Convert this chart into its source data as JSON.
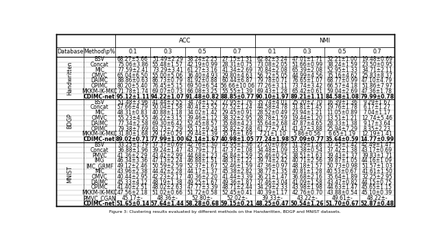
{
  "sections": [
    {
      "db": "Handwritten",
      "methods": [
        "BSV",
        "Concat",
        "MIC",
        "OMVC",
        "DAIMC",
        "OPIMC",
        "MKKM-IK-MKC",
        "CDIMC-net"
      ],
      "acc": [
        [
          "68.27±5.66",
          "51.49±2.29",
          "38.24±2.25",
          "27.15±1.31"
        ],
        [
          "75.06±3.86",
          "55.48±1.57",
          "42.19±0.99",
          "28.31±0.75"
        ],
        [
          "77.59±2.41",
          "73.29±3.41",
          "61.27±3.16",
          "41.34±2.69"
        ],
        [
          "65.04±6.50",
          "55.00±5.06",
          "36.40±4.93",
          "29.80±4.63"
        ],
        [
          "88.86±0.63",
          "86.73±0.79",
          "81.92±0.88",
          "60.44±6.87"
        ],
        [
          "80.20±5.40",
          "76.45±5.15",
          "69.50±6.54",
          "56.66±10.06"
        ],
        [
          "71.78±1.74",
          "69.07±0.73",
          "66.08±3.25",
          "55.55±1.39"
        ],
        [
          "95.12±1.11",
          "94.22±1.07",
          "91.48±0.82",
          "88.85±0.77"
        ]
      ],
      "nmi": [
        [
          "62.82±3.24",
          "47.01±1.71",
          "32.21±1.00",
          "19.48±0.69"
        ],
        [
          "73.08±2.05",
          "51.66±0.99",
          "38.24±1.59",
          "23.50±0.95"
        ],
        [
          "70.84±2.08",
          "65.39±2.08",
          "52.95±1.33",
          "34.71±2.11"
        ],
        [
          "56.72±5.05",
          "44.99±4.56",
          "35.16±4.62",
          "25.83±8.37"
        ],
        [
          "79.78±0.71",
          "76.65±1.07",
          "68.77±0.99",
          "47.10±4.79"
        ],
        [
          "77.26±3.11",
          "73.74±3.42",
          "66.57±4.18",
          "51.86±7.97"
        ],
        [
          "69.43±1.28",
          "65.42±0.61",
          "59.04±2.69",
          "47.36±1.78"
        ],
        [
          "90.10±1.97",
          "89.21±1.11",
          "84.58±1.08",
          "79.99±0.78"
        ]
      ]
    },
    {
      "db": "BDGP",
      "methods": [
        "BSV",
        "Concat",
        "MIC",
        "OMVC",
        "DAIMC",
        "OPIMC",
        "MKKM-IK-MKC",
        "CDIMC-net"
      ],
      "acc": [
        [
          "51.48±3.96",
          "41.44±3.55",
          "34.74±1.52",
          "27.95±1.76"
        ],
        [
          "57.66±4.79",
          "50.04±1.58",
          "40.41±3.52",
          "27.52±1.24"
        ],
        [
          "48.31±0.83",
          "40.88±1.18",
          "34.02±1.42",
          "29.45±0.91"
        ],
        [
          "55.23±4.55",
          "46.22±3.15",
          "39.46±1.12",
          "38.32±2.95"
        ],
        [
          "77.34±2.58",
          "69.30±6.42",
          "52.45±8.57",
          "35.68±4.23"
        ],
        [
          "79.38±7.69",
          "63.73±7.29",
          "55.17±9.24",
          "35.82±2.68"
        ],
        [
          "31.80±1.68",
          "29.12±0.29",
          "29.44±1.39",
          "35.16±1.69"
        ],
        [
          "89.02±0.71",
          "77.99±1.00",
          "62.14±1.67",
          "40.98±1.05"
        ]
      ],
      "nmi": [
        [
          "35.74±4.01",
          "25.20±2.70",
          "16.39±1.36",
          "9.29±1.67"
        ],
        [
          "44.58±4.78",
          "31.81±1.45",
          "19.76±1.78",
          "6.17±1.27"
        ],
        [
          "28.52±0.49",
          "23.94±1.21",
          "11.05±0.89",
          "7.04±1.17"
        ],
        [
          "28.78±1.59",
          "19.44±1.20",
          "13.51±1.21",
          "12.74±5.46"
        ],
        [
          "55.64±2.68",
          "47.87±4.65",
          "28.33±1.38",
          "9.17±3.64"
        ],
        [
          "61.77±7.41",
          "41.47±3.88",
          "25.94±7.29",
          "8.35±2.23"
        ],
        [
          "7.21±1.10",
          "5.86±0.56",
          "6.65±1.19",
          "12.19±1.41"
        ],
        [
          "77.24±1.98",
          "57.09±0.77",
          "35.64±0.59",
          "14.77±0.99"
        ]
      ]
    },
    {
      "db": "MNIST",
      "methods": [
        "BSV",
        "Concat",
        "PMVC",
        "IMG",
        "IMC_GRMF",
        "MIC",
        "OMVC",
        "DAIMC",
        "OPIMC",
        "MKKM-IK-MKC",
        "PMVC_CGAN",
        "CDIMC-net"
      ],
      "acc": [
        [
          "33.25±1.79",
          "37.37±0.69",
          "42.76±1.30",
          "47.95±1.36"
        ],
        [
          "36.88±1.96",
          "39.24±1.47",
          "43.79±1.71",
          "47.37±1.08"
        ],
        [
          "41.36±2.29",
          "43.42±2.99",
          "44.68±1.23",
          "45.84±1.59"
        ],
        [
          "46.34±3.36",
          "47.13±2.24",
          "46.88±1.51",
          "48.31±1.22"
        ],
        [
          "49.12±2.46",
          "50.59±2.59",
          "52.37±1.67",
          "52.46±1.59"
        ],
        [
          "43.96±2.38",
          "44.42±2.28",
          "44.17±1.37",
          "45.38±2.82"
        ],
        [
          "40.44±2.95",
          "42.23±2.17",
          "40.36±2.20",
          "41.44±3.39"
        ],
        [
          "45.33±4.12",
          "48.19±1.38",
          "49.25±1.67",
          "49.36±1.87"
        ],
        [
          "41.40±2.51",
          "48.02±2.63",
          "47.77±3.39",
          "48.71±2.44"
        ],
        [
          "47.56±2.18",
          "51.02±0.66",
          "51.72±0.58",
          "52.45±0.41"
        ],
        [
          "45.17±-",
          "48.36±-",
          "52.80±-",
          "52.02±-"
        ],
        [
          "51.65±0.14",
          "57.64±1.44",
          "58.28±0.68",
          "59.15±0.21"
        ]
      ],
      "nmi": [
        [
          "27.20±0.89",
          "31.39±1.28",
          "37.45±1.42",
          "42.49±1.47"
        ],
        [
          "34.48±1.09",
          "33.38±0.54",
          "37.42±1.38",
          "43.17±0.69"
        ],
        [
          "35.46±0.25",
          "38.51±1.63",
          "39.43±1.37",
          "39.83±1.71"
        ],
        [
          "39.74±2.42",
          "40.71±2.56",
          "39.87±1.05",
          "44.16±1.09"
        ],
        [
          "47.36±0.97",
          "48.18±1.57",
          "50.73±0.98",
          "51.57±1.03"
        ],
        [
          "38.77±1.35",
          "40.81±1.28",
          "40.53±0.67",
          "41.61±1.50"
        ],
        [
          "36.21±1.47",
          "36.68±2.16",
          "35.64±1.89",
          "32.25±2.95"
        ],
        [
          "37.46±3.04",
          "41.09±1.58",
          "43.47±0.82",
          "44.15±0.75"
        ],
        [
          "34.29±2.33",
          "43.98±1.98",
          "44.63±1.47",
          "45.65±1.15"
        ],
        [
          "40.39±1.17",
          "42.76±0.70",
          "43.88±0.54",
          "45.10±0.39"
        ],
        [
          "39.33±-",
          "43.22±-",
          "49.61±-",
          "48.22±-"
        ],
        [
          "48.25±0.47",
          "50.54±1.26",
          "51.70±0.67",
          "52.87±0.48"
        ]
      ]
    }
  ],
  "font_size": 5.5,
  "fig_width": 6.4,
  "fig_height": 3.52,
  "caption": "Figure 3: Clustering results evaluated by different methods on the Handwritten, BDGP and MNIST datasets."
}
